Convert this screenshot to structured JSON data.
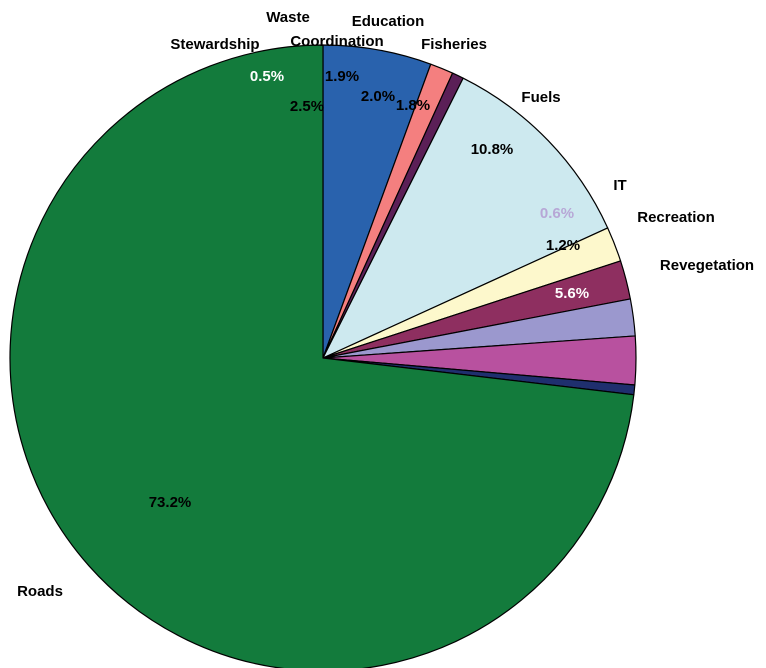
{
  "chart_data": {
    "type": "pie",
    "title": "",
    "start_angle_deg": 90,
    "direction": "clockwise",
    "slices": [
      {
        "label": "Revegetation",
        "value": 5.6,
        "value_label": "5.6%",
        "color": "#2962ad",
        "value_label_color": "#ffffff"
      },
      {
        "label": "Recreation",
        "value": 1.2,
        "value_label": "1.2%",
        "color": "#f47f7f",
        "value_label_color": "#000000"
      },
      {
        "label": "IT",
        "value": 0.6,
        "value_label": "0.6%",
        "color": "#5b1f57",
        "value_label_color": "#b7a7d6"
      },
      {
        "label": "Fuels",
        "value": 10.8,
        "value_label": "10.8%",
        "color": "#cde9ef",
        "value_label_color": "#000000"
      },
      {
        "label": "Fisheries",
        "value": 1.8,
        "value_label": "1.8%",
        "color": "#fdf8cc",
        "value_label_color": "#000000"
      },
      {
        "label": "Education",
        "value": 2.0,
        "value_label": "2.0%",
        "color": "#8e2f60",
        "value_label_color": "#000000"
      },
      {
        "label": "Coordination",
        "value": 1.9,
        "value_label": "1.9%",
        "color": "#9b98ce",
        "value_label_color": "#000000"
      },
      {
        "label": "Waste",
        "value": 2.5,
        "value_label": "2.5%",
        "color": "#b8519f",
        "value_label_color": "#000000"
      },
      {
        "label": "Stewardship",
        "value": 0.5,
        "value_label": "0.5%",
        "color": "#1f2f6e",
        "value_label_color": "#ffffff"
      },
      {
        "label": "Roads",
        "value": 73.2,
        "value_label": "73.2%",
        "color": "#137b3c",
        "value_label_color": "#000000"
      }
    ]
  }
}
